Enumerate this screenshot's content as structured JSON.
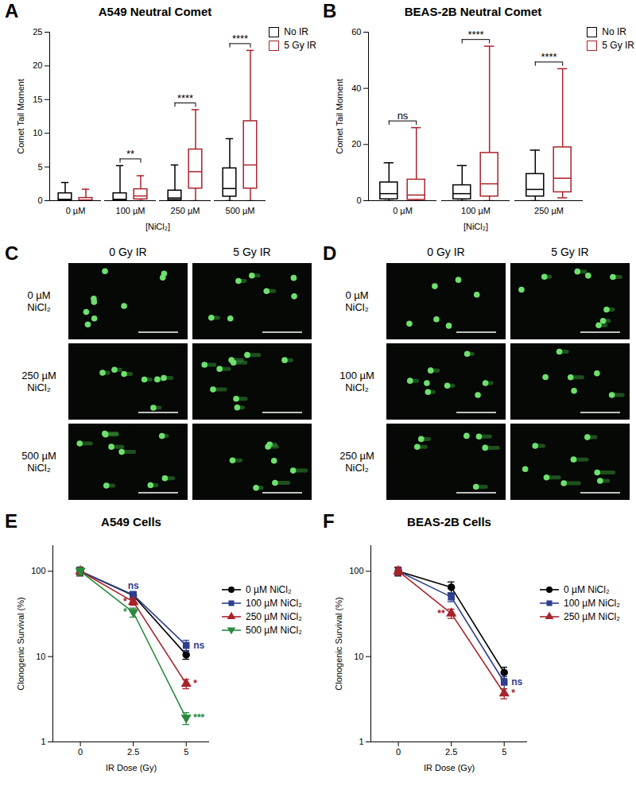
{
  "chart_data": [
    {
      "type": "box",
      "panel_label": "A",
      "title": "A549 Neutral Comet",
      "x_label": "[NiCl₂]",
      "y_label": "Comet Tail Moment",
      "categories": [
        "0 µM",
        "100 µM",
        "250 µM",
        "500 µM"
      ],
      "ylim": [
        0,
        25
      ],
      "yticks": [
        0,
        5,
        10,
        15,
        20,
        25
      ],
      "legend": "top-right",
      "series": [
        {
          "name": "No IR",
          "color": "#000000",
          "min": [
            0,
            0,
            0,
            0
          ],
          "q1": [
            0,
            0,
            0.1,
            0.6
          ],
          "median": [
            0.2,
            0.2,
            0.4,
            1.8
          ],
          "q3": [
            1.1,
            1.1,
            1.5,
            4.8
          ],
          "max": [
            2.7,
            5.2,
            5.3,
            9.2
          ]
        },
        {
          "name": "5 Gy IR",
          "color": "#a8232b",
          "min": [
            0,
            0,
            0,
            0
          ],
          "q1": [
            0,
            0.2,
            1.8,
            1.8
          ],
          "median": [
            0.1,
            0.7,
            4.3,
            5.3
          ],
          "q3": [
            0.4,
            1.7,
            7.6,
            11.8
          ],
          "max": [
            1.7,
            3.7,
            13.5,
            22.3
          ]
        }
      ],
      "significance": [
        null,
        "**",
        "****",
        "****"
      ]
    },
    {
      "type": "box",
      "panel_label": "B",
      "title": "BEAS-2B Neutral Comet",
      "x_label": "[NiCl₂]",
      "y_label": "Comet Tail Moment",
      "categories": [
        "0 µM",
        "100 µM",
        "250 µM"
      ],
      "ylim": [
        0,
        60
      ],
      "yticks": [
        0,
        20,
        40,
        60
      ],
      "legend": "top-right",
      "series": [
        {
          "name": "No IR",
          "color": "#000000",
          "min": [
            0,
            0,
            0
          ],
          "q1": [
            0.5,
            0.5,
            1.5
          ],
          "median": [
            2.5,
            2.5,
            4
          ],
          "q3": [
            6.5,
            5.5,
            9.5
          ],
          "max": [
            13.5,
            12.5,
            18
          ]
        },
        {
          "name": "5 Gy IR",
          "color": "#a8232b",
          "min": [
            0,
            0,
            1
          ],
          "q1": [
            0.3,
            1.5,
            3
          ],
          "median": [
            2,
            6,
            8
          ],
          "q3": [
            7.5,
            17,
            19
          ],
          "max": [
            26,
            55,
            47
          ]
        }
      ],
      "significance": [
        "ns",
        "****",
        "****"
      ]
    },
    {
      "type": "line",
      "panel_label": "E",
      "title": "A549 Cells",
      "x_label": "IR Dose (Gy)",
      "y_label": "Clonogenic Survival (%)",
      "log": "y",
      "x": [
        0,
        2.5,
        5
      ],
      "xlim": [
        -1.3,
        6.1
      ],
      "xticks": [
        0,
        2.5,
        5
      ],
      "ylim": [
        1,
        200
      ],
      "yticks": [
        1,
        10,
        100
      ],
      "legend": "right",
      "series": [
        {
          "name": "0 µM NiCl₂",
          "color": "#000000",
          "marker": "circle",
          "values": [
            100,
            52,
            10.5
          ],
          "error": [
            12,
            5,
            1.2
          ],
          "significance": [
            null,
            null,
            null
          ]
        },
        {
          "name": "100 µM NiCl₂",
          "color": "#2e3f8f",
          "marker": "square",
          "values": [
            100,
            53,
            13.5
          ],
          "error": [
            10,
            5,
            2
          ],
          "significance": [
            null,
            "ns",
            "ns"
          ]
        },
        {
          "name": "250 µM NiCl₂",
          "color": "#a8232b",
          "marker": "triangle",
          "values": [
            100,
            44,
            4.8
          ],
          "error": [
            10,
            4,
            0.6
          ],
          "significance": [
            null,
            "*",
            "*"
          ]
        },
        {
          "name": "500 µM NiCl₂",
          "color": "#2a8a3e",
          "marker": "triangle-down",
          "values": [
            100,
            33,
            1.9
          ],
          "error": [
            10,
            4,
            0.3
          ],
          "significance": [
            null,
            "*",
            "***"
          ]
        }
      ]
    },
    {
      "type": "line",
      "panel_label": "F",
      "title": "BEAS-2B Cells",
      "x_label": "IR Dose (Gy)",
      "y_label": "Clonogenic Survival (%)",
      "log": "y",
      "x": [
        0,
        2.5,
        5
      ],
      "xlim": [
        -1.3,
        6.1
      ],
      "xticks": [
        0,
        2.5,
        5
      ],
      "ylim": [
        1,
        200
      ],
      "yticks": [
        1,
        10,
        100
      ],
      "legend": "right",
      "series": [
        {
          "name": "0 µM NiCl₂",
          "color": "#000000",
          "marker": "circle",
          "values": [
            100,
            65,
            6.5
          ],
          "error": [
            12,
            10,
            1
          ],
          "significance": [
            null,
            null,
            null
          ]
        },
        {
          "name": "100 µM NiCl₂",
          "color": "#2e3f8f",
          "marker": "square",
          "values": [
            100,
            50,
            5
          ],
          "error": [
            10,
            6,
            0.8
          ],
          "significance": [
            null,
            null,
            "ns"
          ]
        },
        {
          "name": "250 µM NiCl₂",
          "color": "#a8232b",
          "marker": "triangle",
          "values": [
            100,
            32,
            3.7
          ],
          "error": [
            10,
            4,
            0.5
          ],
          "significance": [
            null,
            "**",
            "*"
          ]
        }
      ]
    }
  ],
  "micrographs": [
    {
      "panel_label": "C",
      "columns": [
        "0 Gy IR",
        "5 Gy IR"
      ],
      "rows": [
        "0 µM NiCl₂",
        "250 µM NiCl₂",
        "500 µM NiCl₂"
      ]
    },
    {
      "panel_label": "D",
      "columns": [
        "0 Gy IR",
        "5 Gy IR"
      ],
      "rows": [
        "0 µM NiCl₂",
        "100 µM NiCl₂",
        "250 µM NiCl₂"
      ]
    }
  ]
}
